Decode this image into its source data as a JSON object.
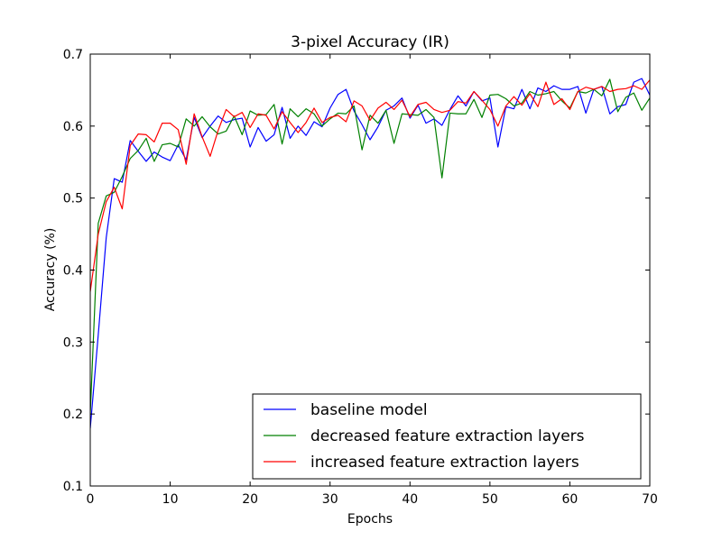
{
  "chart_data": {
    "type": "line",
    "title": "3-pixel Accuracy (IR)",
    "xlabel": "Epochs",
    "ylabel": "Accuracy (%)",
    "xlim": [
      0,
      70
    ],
    "ylim": [
      0.1,
      0.7
    ],
    "xticks": [
      0,
      10,
      20,
      30,
      40,
      50,
      60,
      70
    ],
    "yticks": [
      0.1,
      0.2,
      0.3,
      0.4,
      0.5,
      0.6,
      0.7
    ],
    "grid": false,
    "legend_position": "lower-right",
    "series": [
      {
        "name": "baseline model",
        "color": "#0000ff",
        "x": [
          0,
          1,
          2,
          3,
          4,
          5,
          6,
          7,
          8,
          9,
          10,
          11,
          12,
          13,
          14,
          15,
          16,
          17,
          18,
          19,
          20,
          21,
          22,
          23,
          24,
          25,
          26,
          27,
          28,
          29,
          30,
          31,
          32,
          33,
          34,
          35,
          36,
          37,
          38,
          39,
          40,
          41,
          42,
          43,
          44,
          45,
          46,
          47,
          48,
          49,
          50,
          51,
          52,
          53,
          54,
          55,
          56,
          57,
          58,
          59,
          60,
          61,
          62,
          63,
          64,
          65,
          66,
          67,
          68,
          69,
          70
        ],
        "values": [
          0.18,
          0.31,
          0.445,
          0.527,
          0.522,
          0.58,
          0.565,
          0.551,
          0.564,
          0.557,
          0.552,
          0.574,
          0.553,
          0.612,
          0.584,
          0.6,
          0.614,
          0.605,
          0.609,
          0.611,
          0.571,
          0.598,
          0.579,
          0.588,
          0.626,
          0.583,
          0.6,
          0.587,
          0.606,
          0.599,
          0.625,
          0.644,
          0.651,
          0.621,
          0.602,
          0.581,
          0.599,
          0.622,
          0.628,
          0.639,
          0.611,
          0.629,
          0.604,
          0.61,
          0.601,
          0.623,
          0.642,
          0.628,
          0.648,
          0.635,
          0.639,
          0.571,
          0.627,
          0.624,
          0.651,
          0.624,
          0.653,
          0.648,
          0.656,
          0.651,
          0.651,
          0.655,
          0.618,
          0.651,
          0.655,
          0.617,
          0.627,
          0.63,
          0.661,
          0.666,
          0.643
        ]
      },
      {
        "name": "decreased feature extraction layers",
        "color": "#008000",
        "x": [
          0,
          1,
          2,
          3,
          4,
          5,
          6,
          7,
          8,
          9,
          10,
          11,
          12,
          13,
          14,
          15,
          16,
          17,
          18,
          19,
          20,
          21,
          22,
          23,
          24,
          25,
          26,
          27,
          28,
          29,
          30,
          31,
          32,
          33,
          34,
          35,
          36,
          37,
          38,
          39,
          40,
          41,
          42,
          43,
          44,
          45,
          46,
          47,
          48,
          49,
          50,
          51,
          52,
          53,
          54,
          55,
          56,
          57,
          58,
          59,
          60,
          61,
          62,
          63,
          64,
          65,
          66,
          67,
          68,
          69,
          70
        ],
        "values": [
          0.2,
          0.465,
          0.503,
          0.508,
          0.53,
          0.555,
          0.566,
          0.583,
          0.551,
          0.574,
          0.576,
          0.571,
          0.61,
          0.6,
          0.613,
          0.599,
          0.589,
          0.593,
          0.614,
          0.588,
          0.621,
          0.615,
          0.616,
          0.63,
          0.575,
          0.624,
          0.613,
          0.624,
          0.617,
          0.6,
          0.61,
          0.618,
          0.617,
          0.628,
          0.567,
          0.615,
          0.604,
          0.622,
          0.576,
          0.617,
          0.616,
          0.615,
          0.623,
          0.612,
          0.528,
          0.618,
          0.617,
          0.617,
          0.637,
          0.612,
          0.643,
          0.644,
          0.638,
          0.628,
          0.632,
          0.648,
          0.643,
          0.645,
          0.648,
          0.635,
          0.625,
          0.648,
          0.646,
          0.651,
          0.642,
          0.665,
          0.62,
          0.64,
          0.646,
          0.622,
          0.639
        ]
      },
      {
        "name": "increased feature extraction layers",
        "color": "#ff0000",
        "x": [
          0,
          1,
          2,
          3,
          4,
          5,
          6,
          7,
          8,
          9,
          10,
          11,
          12,
          13,
          14,
          15,
          16,
          17,
          18,
          19,
          20,
          21,
          22,
          23,
          24,
          25,
          26,
          27,
          28,
          29,
          30,
          31,
          32,
          33,
          34,
          35,
          36,
          37,
          38,
          39,
          40,
          41,
          42,
          43,
          44,
          45,
          46,
          47,
          48,
          49,
          50,
          51,
          52,
          53,
          54,
          55,
          56,
          57,
          58,
          59,
          60,
          61,
          62,
          63,
          64,
          65,
          66,
          67,
          68,
          69,
          70
        ],
        "values": [
          0.37,
          0.45,
          0.495,
          0.515,
          0.485,
          0.573,
          0.589,
          0.588,
          0.578,
          0.604,
          0.604,
          0.595,
          0.547,
          0.617,
          0.585,
          0.558,
          0.594,
          0.623,
          0.613,
          0.619,
          0.598,
          0.617,
          0.615,
          0.596,
          0.62,
          0.605,
          0.591,
          0.605,
          0.625,
          0.605,
          0.612,
          0.615,
          0.606,
          0.635,
          0.628,
          0.608,
          0.625,
          0.633,
          0.623,
          0.636,
          0.613,
          0.63,
          0.633,
          0.623,
          0.619,
          0.622,
          0.634,
          0.632,
          0.648,
          0.636,
          0.623,
          0.6,
          0.628,
          0.641,
          0.629,
          0.645,
          0.627,
          0.661,
          0.63,
          0.638,
          0.623,
          0.648,
          0.654,
          0.651,
          0.655,
          0.648,
          0.651,
          0.652,
          0.656,
          0.651,
          0.664
        ]
      }
    ]
  }
}
